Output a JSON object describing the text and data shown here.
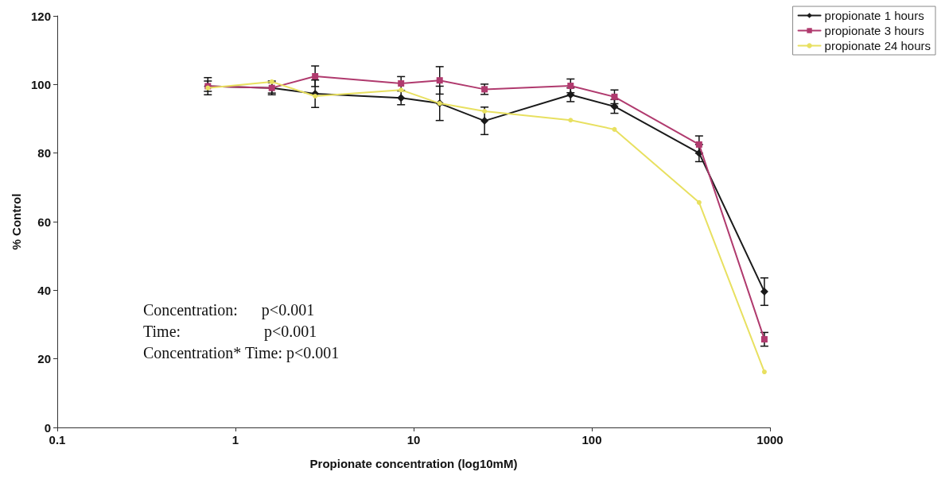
{
  "chart_data": {
    "type": "line",
    "xlabel": "Propionate concentration (log10mM)",
    "ylabel": "% Control",
    "log": "x",
    "xlim": [
      0.1,
      1000
    ],
    "xticks": [
      0.1,
      1,
      10,
      100,
      1000
    ],
    "ylim": [
      0,
      120
    ],
    "yticks": [
      0,
      20,
      40,
      60,
      80,
      100,
      120
    ],
    "x": [
      0.7,
      1.6,
      2.8,
      8.5,
      14,
      25,
      76,
      134,
      400,
      930
    ],
    "series": [
      {
        "name": "propionate 1 hours",
        "color": "#1a1a1a",
        "marker": "diamond",
        "values": [
          99.5,
          99,
          97.3,
          96.1,
          94.5,
          89.4,
          97,
          93.6,
          80,
          39.6
        ],
        "errors": [
          2.5,
          2,
          4,
          2,
          5,
          4,
          2,
          2,
          2.5,
          4
        ]
      },
      {
        "name": "propionate 3 hours",
        "color": "#b03a6e",
        "marker": "square",
        "values": [
          99.5,
          99,
          102.4,
          100.3,
          101.2,
          98.6,
          99.6,
          96.4,
          82.5,
          25.7
        ],
        "errors": [
          1.5,
          1.5,
          3,
          2,
          4,
          1.5,
          2,
          2,
          2.5,
          2
        ]
      },
      {
        "name": "propionate 24 hours",
        "color": "#e8e060",
        "marker": "circle",
        "values": [
          99,
          100.8,
          96.6,
          98.4,
          94.5,
          92.2,
          89.6,
          86.9,
          65.6,
          16.2
        ]
      }
    ],
    "legend": "top right",
    "grid": false,
    "annotations": [
      "Concentration:      p<0.001",
      "Time:                     p<0.001",
      "Concentration* Time: p<0.001"
    ]
  }
}
